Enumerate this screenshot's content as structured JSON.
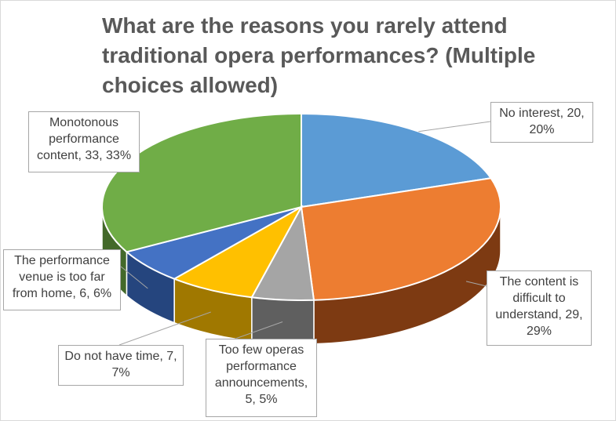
{
  "chart_data": {
    "type": "pie",
    "style": "3d",
    "title": "What are the reasons you rarely attend traditional opera performances? (Multiple choices allowed)",
    "slices": [
      {
        "label": "No interest, 20, 20%",
        "category": "No interest",
        "value": 20,
        "percent": 20,
        "color": "#5b9bd5",
        "side_color": "#2e5a87"
      },
      {
        "label": "The content is difficult to understand, 29, 29%",
        "category": "The content is difficult to understand",
        "value": 29,
        "percent": 29,
        "color": "#ed7d31",
        "side_color": "#7d3a12"
      },
      {
        "label": "Too few operas performance announcements, 5, 5%",
        "category": "Too few operas performance announcements",
        "value": 5,
        "percent": 5,
        "color": "#a5a5a5",
        "side_color": "#5f5f5f"
      },
      {
        "label": "Do not have time, 7, 7%",
        "category": "Do not have time",
        "value": 7,
        "percent": 7,
        "color": "#ffc000",
        "side_color": "#a07800"
      },
      {
        "label": "The performance venue is too far from home, 6, 6%",
        "category": "The performance venue is too far from home",
        "value": 6,
        "percent": 6,
        "color": "#4472c4",
        "side_color": "#25457e"
      },
      {
        "label": "Monotonous performance content, 33, 33%",
        "category": "Monotonous performance content",
        "value": 33,
        "percent": 33,
        "color": "#70ad47",
        "side_color": "#43692a"
      }
    ]
  }
}
